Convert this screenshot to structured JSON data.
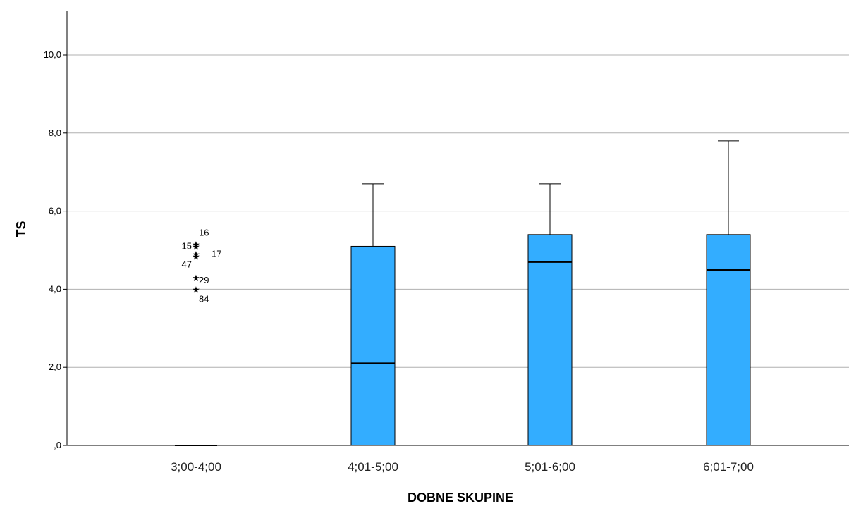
{
  "chart_data": {
    "type": "boxplot",
    "xlabel": "DOBNE SKUPINE",
    "ylabel": "TS",
    "ylim": [
      0,
      11
    ],
    "yticks": [
      {
        "value": 0,
        "label": ",0"
      },
      {
        "value": 2,
        "label": "2,0"
      },
      {
        "value": 4,
        "label": "4,0"
      },
      {
        "value": 6,
        "label": "6,0"
      },
      {
        "value": 8,
        "label": "8,0"
      },
      {
        "value": 10,
        "label": "10,0"
      }
    ],
    "grid": true,
    "box_color": "#33adff",
    "categories": [
      "3;00-4;00",
      "4;01-5;00",
      "5;01-6;00",
      "6;01-7;00"
    ],
    "boxes": [
      {
        "category": "3;00-4;00",
        "min": 0,
        "q1": 0,
        "median": 0,
        "q3": 0,
        "max": 0,
        "outliers": [
          {
            "value": 5.15,
            "label": "16"
          },
          {
            "value": 5.1,
            "label": "15"
          },
          {
            "value": 4.9,
            "label": "17"
          },
          {
            "value": 4.85,
            "label": "47"
          },
          {
            "value": 4.3,
            "label": "29"
          },
          {
            "value": 4.0,
            "label": "84"
          }
        ]
      },
      {
        "category": "4;01-5;00",
        "min": 0,
        "q1": 0,
        "median": 2.1,
        "q3": 5.1,
        "max": 6.7,
        "outliers": []
      },
      {
        "category": "5;01-6;00",
        "min": 0,
        "q1": 0,
        "median": 4.7,
        "q3": 5.4,
        "max": 6.7,
        "outliers": []
      },
      {
        "category": "6;01-7;00",
        "min": 0,
        "q1": 0,
        "median": 4.5,
        "q3": 5.4,
        "max": 7.8,
        "outliers": []
      }
    ]
  }
}
